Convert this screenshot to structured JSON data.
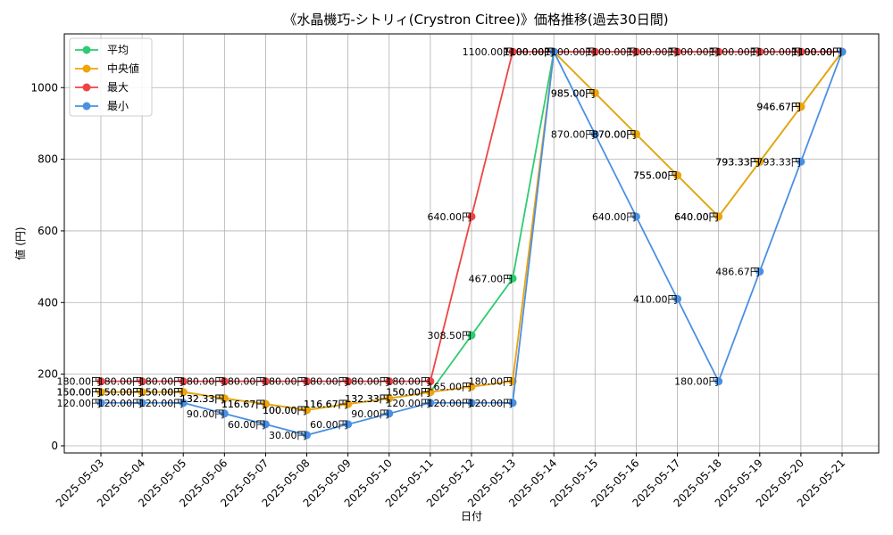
{
  "chart_data": {
    "type": "line",
    "title": "《水晶機巧-シトリィ(Crystron Citree)》価格推移(過去30日間)",
    "xlabel": "日付",
    "ylabel": "値 (円)",
    "ylim": [
      -20,
      1150
    ],
    "yticks": [
      0,
      200,
      400,
      600,
      800,
      1000
    ],
    "grid": true,
    "legend_position": "top-left",
    "label_suffix": "円",
    "categories": [
      "2025-05-03",
      "2025-05-04",
      "2025-05-05",
      "2025-05-06",
      "2025-05-07",
      "2025-05-08",
      "2025-05-09",
      "2025-05-10",
      "2025-05-11",
      "2025-05-12",
      "2025-05-13",
      "2025-05-14",
      "2025-05-15",
      "2025-05-16",
      "2025-05-17",
      "2025-05-18",
      "2025-05-19",
      "2025-05-20",
      "2025-05-21"
    ],
    "series": [
      {
        "name": "平均",
        "color": "#2ecc71",
        "values": [
          150,
          150,
          150,
          132.33,
          116.67,
          100,
          116.67,
          132.33,
          150,
          308.5,
          467,
          1100,
          985,
          870,
          755,
          640,
          793.33,
          946.67,
          1100
        ]
      },
      {
        "name": "中央値",
        "color": "#f0a30a",
        "values": [
          150,
          150,
          150,
          132.33,
          116.67,
          100,
          116.67,
          132.33,
          150,
          165,
          180,
          1100,
          985,
          870,
          755,
          640,
          793.33,
          946.67,
          1100
        ]
      },
      {
        "name": "最大",
        "color": "#ef4444",
        "values": [
          180,
          180,
          180,
          180,
          180,
          180,
          180,
          180,
          180,
          640,
          1100,
          1100,
          1100,
          1100,
          1100,
          1100,
          1100,
          1100,
          1100
        ]
      },
      {
        "name": "最小",
        "color": "#4a90e2",
        "values": [
          120,
          120,
          120,
          90,
          60,
          30,
          60,
          90,
          120,
          120,
          120,
          1100,
          870,
          640,
          410,
          180,
          486.67,
          793.33,
          1100
        ]
      }
    ]
  }
}
